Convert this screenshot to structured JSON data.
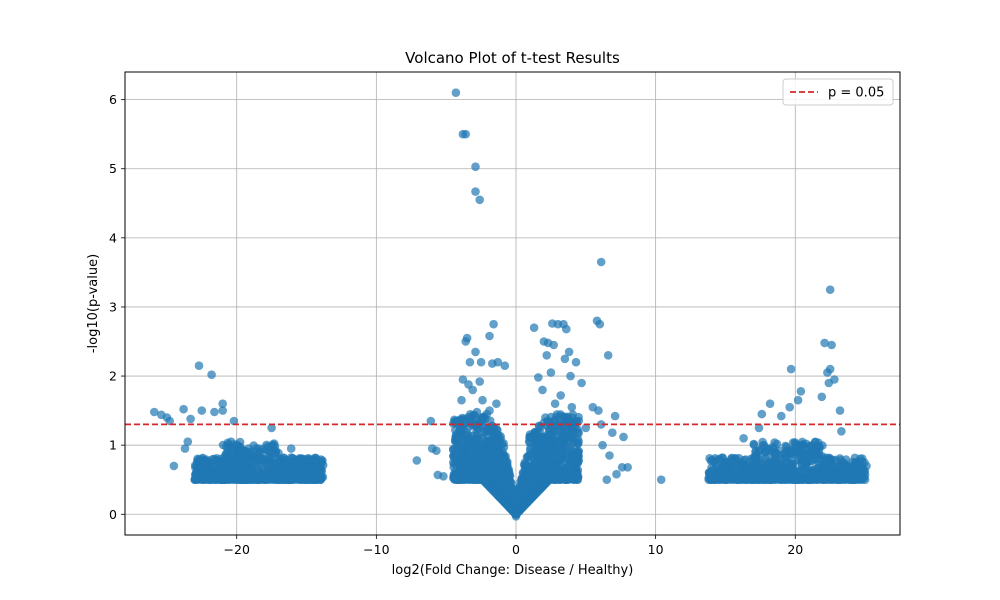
{
  "chart_data": {
    "type": "scatter",
    "title": "Volcano Plot of t-test Results",
    "xlabel": "log2(Fold Change: Disease / Healthy)",
    "ylabel": "-log10(p-value)",
    "xlim": [
      -28,
      27.5
    ],
    "ylim": [
      -0.3,
      6.4
    ],
    "xticks": [
      -20,
      -10,
      0,
      10,
      20
    ],
    "xtick_labels": [
      "−20",
      "−10",
      "0",
      "10",
      "20"
    ],
    "yticks": [
      0,
      1,
      2,
      3,
      4,
      5,
      6
    ],
    "ytick_labels": [
      "0",
      "1",
      "2",
      "3",
      "4",
      "5",
      "6"
    ],
    "grid": true,
    "marker_color": "#1f77b4",
    "marker_alpha": 0.7,
    "threshold": {
      "label": "p = 0.05",
      "y": 1.301,
      "color": "#d62728",
      "style": "dashed"
    },
    "legend": {
      "placement": "top-right",
      "entries": [
        "p = 0.05"
      ]
    },
    "points": [
      [
        -4.3,
        6.1
      ],
      [
        -3.8,
        5.5
      ],
      [
        -3.6,
        5.5
      ],
      [
        -2.9,
        5.03
      ],
      [
        -2.9,
        4.67
      ],
      [
        -2.6,
        4.55
      ],
      [
        6.1,
        3.65
      ],
      [
        22.5,
        3.25
      ],
      [
        5.8,
        2.8
      ],
      [
        6.0,
        2.75
      ],
      [
        3.0,
        2.75
      ],
      [
        3.4,
        2.75
      ],
      [
        1.3,
        2.7
      ],
      [
        2.6,
        2.76
      ],
      [
        3.6,
        2.68
      ],
      [
        -1.6,
        2.75
      ],
      [
        -3.5,
        2.55
      ],
      [
        -3.6,
        2.5
      ],
      [
        -1.9,
        2.58
      ],
      [
        2.0,
        2.5
      ],
      [
        2.3,
        2.48
      ],
      [
        2.7,
        2.45
      ],
      [
        6.6,
        2.3
      ],
      [
        3.8,
        2.35
      ],
      [
        -2.9,
        2.35
      ],
      [
        -1.3,
        2.2
      ],
      [
        -1.7,
        2.18
      ],
      [
        -0.8,
        2.15
      ],
      [
        -2.5,
        2.2
      ],
      [
        -3.3,
        2.2
      ],
      [
        3.5,
        2.25
      ],
      [
        4.3,
        2.2
      ],
      [
        2.2,
        2.3
      ],
      [
        -22.7,
        2.15
      ],
      [
        -21.8,
        2.02
      ],
      [
        -21.0,
        1.6
      ],
      [
        22.1,
        2.48
      ],
      [
        22.6,
        2.45
      ],
      [
        19.7,
        2.1
      ],
      [
        22.5,
        2.1
      ],
      [
        22.3,
        2.05
      ],
      [
        22.8,
        1.95
      ],
      [
        22.4,
        1.9
      ],
      [
        21.9,
        1.7
      ],
      [
        20.4,
        1.78
      ],
      [
        20.2,
        1.65
      ],
      [
        18.2,
        1.6
      ],
      [
        19.0,
        1.42
      ],
      [
        17.6,
        1.45
      ],
      [
        19.6,
        1.55
      ],
      [
        23.2,
        1.5
      ],
      [
        23.3,
        1.2
      ],
      [
        16.3,
        1.1
      ],
      [
        17.4,
        1.25
      ],
      [
        -25.9,
        1.48
      ],
      [
        -25.4,
        1.44
      ],
      [
        -25.0,
        1.4
      ],
      [
        -24.8,
        1.35
      ],
      [
        -23.8,
        1.52
      ],
      [
        -23.3,
        1.38
      ],
      [
        -22.5,
        1.5
      ],
      [
        -21.6,
        1.48
      ],
      [
        -21.0,
        1.5
      ],
      [
        -20.2,
        1.35
      ],
      [
        -17.5,
        1.25
      ],
      [
        -23.5,
        1.05
      ],
      [
        -24.5,
        0.7
      ],
      [
        -23.7,
        0.95
      ],
      [
        -22.8,
        0.7
      ],
      [
        -22.2,
        0.62
      ],
      [
        -16.1,
        0.95
      ],
      [
        -20.4,
        1.05
      ],
      [
        -18.6,
        0.95
      ],
      [
        -17.8,
        0.98
      ],
      [
        -6.1,
        1.35
      ],
      [
        -7.1,
        0.78
      ],
      [
        -5.6,
        0.57
      ],
      [
        -6.0,
        0.95
      ],
      [
        -5.2,
        0.55
      ],
      [
        -5.7,
        0.92
      ],
      [
        7.1,
        1.42
      ],
      [
        7.7,
        1.12
      ],
      [
        8.0,
        0.68
      ],
      [
        7.6,
        0.68
      ],
      [
        10.4,
        0.5
      ],
      [
        6.5,
        0.5
      ],
      [
        6.7,
        0.85
      ],
      [
        7.2,
        0.58
      ],
      [
        6.2,
        1.0
      ],
      [
        6.9,
        1.18
      ],
      [
        5.5,
        1.55
      ],
      [
        5.9,
        1.5
      ],
      [
        6.1,
        1.3
      ],
      [
        -3.8,
        1.95
      ],
      [
        -3.1,
        1.8
      ],
      [
        -2.4,
        1.65
      ],
      [
        -3.9,
        1.65
      ],
      [
        -4.3,
        1.35
      ],
      [
        -1.9,
        1.5
      ],
      [
        -2.8,
        1.48
      ],
      [
        -3.4,
        1.88
      ],
      [
        -2.6,
        1.92
      ],
      [
        -1.4,
        1.6
      ],
      [
        -2.1,
        1.45
      ],
      [
        1.6,
        1.98
      ],
      [
        1.9,
        1.8
      ],
      [
        2.5,
        2.05
      ],
      [
        3.2,
        1.72
      ],
      [
        4.0,
        1.55
      ],
      [
        4.5,
        1.35
      ],
      [
        2.8,
        1.6
      ],
      [
        4.7,
        1.9
      ],
      [
        3.9,
        2.0
      ],
      [
        5.0,
        1.25
      ],
      [
        -14.0,
        0.5
      ],
      [
        -15.0,
        0.5
      ],
      [
        -16.0,
        0.5
      ],
      [
        -17.0,
        0.5
      ],
      [
        -18.0,
        0.5
      ],
      [
        -19.0,
        0.5
      ],
      [
        -20.0,
        0.5
      ],
      [
        -21.0,
        0.5
      ],
      [
        -22.0,
        0.5
      ],
      [
        -23.0,
        0.5
      ],
      [
        14.0,
        0.5
      ],
      [
        15.0,
        0.5
      ],
      [
        16.0,
        0.5
      ],
      [
        17.0,
        0.5
      ],
      [
        18.0,
        0.5
      ],
      [
        19.0,
        0.5
      ],
      [
        20.0,
        0.5
      ],
      [
        21.0,
        0.5
      ],
      [
        22.0,
        0.5
      ],
      [
        23.0,
        0.5
      ],
      [
        24.0,
        0.5
      ],
      [
        25.0,
        0.5
      ],
      [
        24.6,
        0.6
      ],
      [
        25.1,
        0.7
      ],
      [
        23.9,
        0.62
      ],
      [
        24.8,
        0.52
      ]
    ],
    "dense_regions": [
      {
        "x_range": [
          -23,
          -13.8
        ],
        "y_floor": 0.5,
        "y_center": 0.75,
        "note": "left cluster"
      },
      {
        "x_range": [
          13.8,
          25
        ],
        "y_floor": 0.5,
        "y_center": 0.75,
        "note": "right cluster"
      },
      {
        "x_range": [
          -8,
          8
        ],
        "shape": "v",
        "note": "central cluster"
      }
    ]
  }
}
